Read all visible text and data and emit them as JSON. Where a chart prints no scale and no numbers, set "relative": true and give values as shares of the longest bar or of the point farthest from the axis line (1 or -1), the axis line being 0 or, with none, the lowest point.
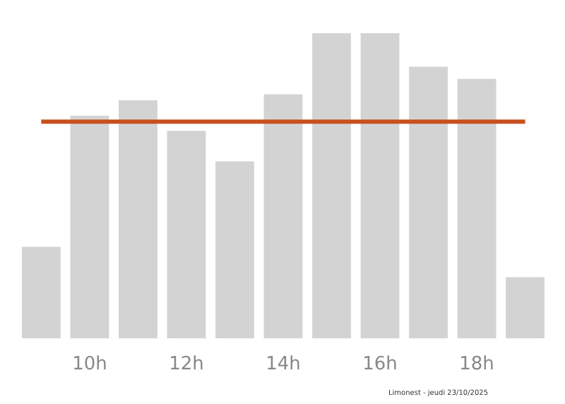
{
  "chart_data": {
    "type": "bar",
    "relative": true,
    "x": [
      9,
      10,
      11,
      12,
      13,
      14,
      15,
      16,
      17,
      18,
      19
    ],
    "values": [
      0.3,
      0.73,
      0.78,
      0.68,
      0.58,
      0.8,
      1,
      1,
      0.89,
      0.85,
      0.2
    ],
    "color": "#d3d3d3",
    "xlim": [
      8.6,
      19.4
    ],
    "xticks": [
      {
        "value": 10,
        "label": "10h"
      },
      {
        "value": 12,
        "label": "12h"
      },
      {
        "value": 14,
        "label": "14h"
      },
      {
        "value": 16,
        "label": "16h"
      },
      {
        "value": 18,
        "label": "18h"
      }
    ],
    "ref_lines": [
      {
        "axis": "y",
        "value": 0.71,
        "color": "#c8501e"
      }
    ],
    "annotations": [
      "Limonest - jeudi 23/10/2025"
    ],
    "grid": false
  }
}
